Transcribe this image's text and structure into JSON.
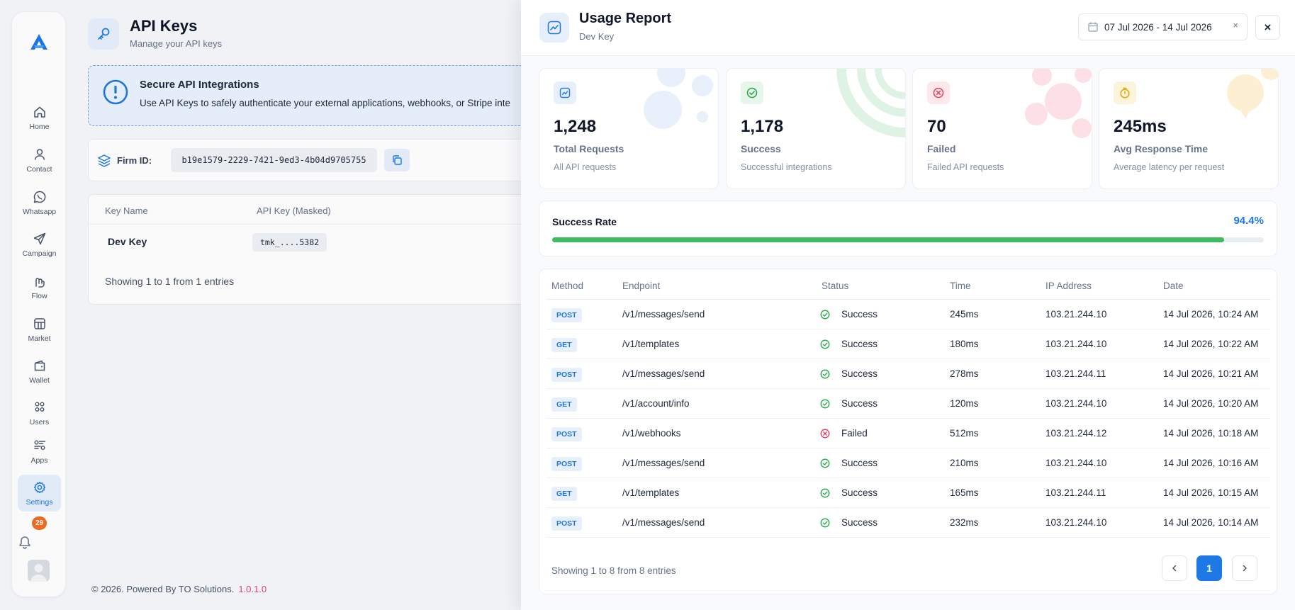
{
  "sidebar": {
    "items": [
      {
        "label": "Home",
        "icon": "home-icon"
      },
      {
        "label": "Contact",
        "icon": "user-icon"
      },
      {
        "label": "Whatsapp",
        "icon": "whatsapp-icon"
      },
      {
        "label": "Campaign",
        "icon": "send-icon"
      },
      {
        "label": "Flow",
        "icon": "flow-icon"
      },
      {
        "label": "Market",
        "icon": "market-icon"
      },
      {
        "label": "Wallet",
        "icon": "wallet-icon"
      },
      {
        "label": "Users",
        "icon": "users-icon"
      },
      {
        "label": "Apps",
        "icon": "apps-icon"
      },
      {
        "label": "Settings",
        "icon": "gear-icon",
        "active": true
      }
    ],
    "notification_count": "29"
  },
  "page": {
    "title": "API Keys",
    "subtitle": "Manage your API keys"
  },
  "info": {
    "title": "Secure API Integrations",
    "text": "Use API Keys to safely authenticate your external applications, webhooks, or Stripe inte"
  },
  "firm": {
    "label": "Firm ID:",
    "value": "b19e1579-2229-7421-9ed3-4b04d9705755"
  },
  "keys_table": {
    "headers": [
      "Key Name",
      "API Key (Masked)"
    ],
    "rows": [
      {
        "name": "Dev Key",
        "masked": "tmk_....5382"
      }
    ],
    "showing": "Showing 1 to 1 from 1 entries"
  },
  "footer": {
    "text": "© 2026. Powered By TO Solutions.",
    "version": "1.0.1.0"
  },
  "drawer": {
    "title": "Usage Report",
    "subtitle": "Dev Key",
    "date_range": "07 Jul 2026 - 14 Jul 2026",
    "clear": "×",
    "close": "×"
  },
  "stats": [
    {
      "value": "1,248",
      "label": "Total Requests",
      "desc": "All API requests",
      "color": "#1e78e6",
      "bg": "#e6effa",
      "icon": "chart-icon"
    },
    {
      "value": "1,178",
      "label": "Success",
      "desc": "Successful integrations",
      "color": "#22a447",
      "bg": "#e6f6ea",
      "icon": "check-circle-icon"
    },
    {
      "value": "70",
      "label": "Failed",
      "desc": "Failed API requests",
      "color": "#e5395a",
      "bg": "#fde8ec",
      "icon": "x-circle-icon"
    },
    {
      "value": "245ms",
      "label": "Avg Response Time",
      "desc": "Average latency per request",
      "color": "#e0a500",
      "bg": "#fdf4dc",
      "icon": "stopwatch-icon"
    }
  ],
  "success_rate": {
    "label": "Success Rate",
    "value": "94.4%",
    "fraction": 0.944
  },
  "requests": {
    "headers": [
      "Method",
      "Endpoint",
      "Status",
      "Time",
      "IP Address",
      "Date"
    ],
    "rows": [
      {
        "method": "POST",
        "endpoint": "/v1/messages/send",
        "status": "Success",
        "time": "245ms",
        "ip": "103.21.244.10",
        "date": "14 Jul 2026, 10:24 AM"
      },
      {
        "method": "GET",
        "endpoint": "/v1/templates",
        "status": "Success",
        "time": "180ms",
        "ip": "103.21.244.10",
        "date": "14 Jul 2026, 10:22 AM"
      },
      {
        "method": "POST",
        "endpoint": "/v1/messages/send",
        "status": "Success",
        "time": "278ms",
        "ip": "103.21.244.11",
        "date": "14 Jul 2026, 10:21 AM"
      },
      {
        "method": "GET",
        "endpoint": "/v1/account/info",
        "status": "Success",
        "time": "120ms",
        "ip": "103.21.244.10",
        "date": "14 Jul 2026, 10:20 AM"
      },
      {
        "method": "POST",
        "endpoint": "/v1/webhooks",
        "status": "Failed",
        "time": "512ms",
        "ip": "103.21.244.12",
        "date": "14 Jul 2026, 10:18 AM"
      },
      {
        "method": "POST",
        "endpoint": "/v1/messages/send",
        "status": "Success",
        "time": "210ms",
        "ip": "103.21.244.10",
        "date": "14 Jul 2026, 10:16 AM"
      },
      {
        "method": "GET",
        "endpoint": "/v1/templates",
        "status": "Success",
        "time": "165ms",
        "ip": "103.21.244.11",
        "date": "14 Jul 2026, 10:15 AM"
      },
      {
        "method": "POST",
        "endpoint": "/v1/messages/send",
        "status": "Success",
        "time": "232ms",
        "ip": "103.21.244.10",
        "date": "14 Jul 2026, 10:14 AM"
      }
    ],
    "showing": "Showing 1 to 8 from 8 entries",
    "page": "1"
  }
}
